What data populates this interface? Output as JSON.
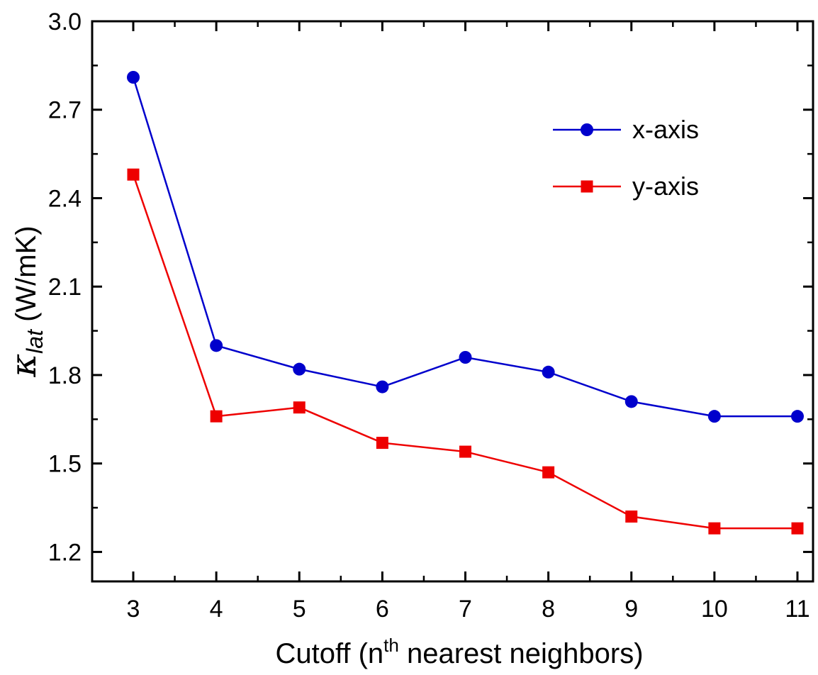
{
  "chart_data": {
    "type": "line",
    "xlabel_main": "Cutoff (n",
    "xlabel_sup": "th",
    "xlabel_rest": " nearest neighbors)",
    "ylabel_symbol": "κ",
    "ylabel_sub": "lat",
    "ylabel_unit": " (W/mK)",
    "xlim": [
      3,
      11
    ],
    "ylim": [
      1.1,
      3.0
    ],
    "x": [
      3,
      4,
      5,
      6,
      7,
      8,
      9,
      10,
      11
    ],
    "x_ticks": [
      "3",
      "4",
      "5",
      "6",
      "7",
      "8",
      "9",
      "10",
      "11"
    ],
    "y_ticks": [
      "1.2",
      "1.5",
      "1.8",
      "2.1",
      "2.4",
      "2.7",
      "3.0"
    ],
    "y_tick_values": [
      1.2,
      1.5,
      1.8,
      2.1,
      2.4,
      2.7,
      3.0
    ],
    "legend_position": "top-right",
    "series": [
      {
        "name": "x-axis",
        "color": "#0000cc",
        "marker": "circle",
        "values": [
          2.81,
          1.9,
          1.82,
          1.76,
          1.86,
          1.81,
          1.71,
          1.66,
          1.66
        ]
      },
      {
        "name": "y-axis",
        "color": "#ee0000",
        "marker": "square",
        "values": [
          2.48,
          1.66,
          1.69,
          1.57,
          1.54,
          1.47,
          1.32,
          1.28,
          1.28
        ]
      }
    ]
  }
}
